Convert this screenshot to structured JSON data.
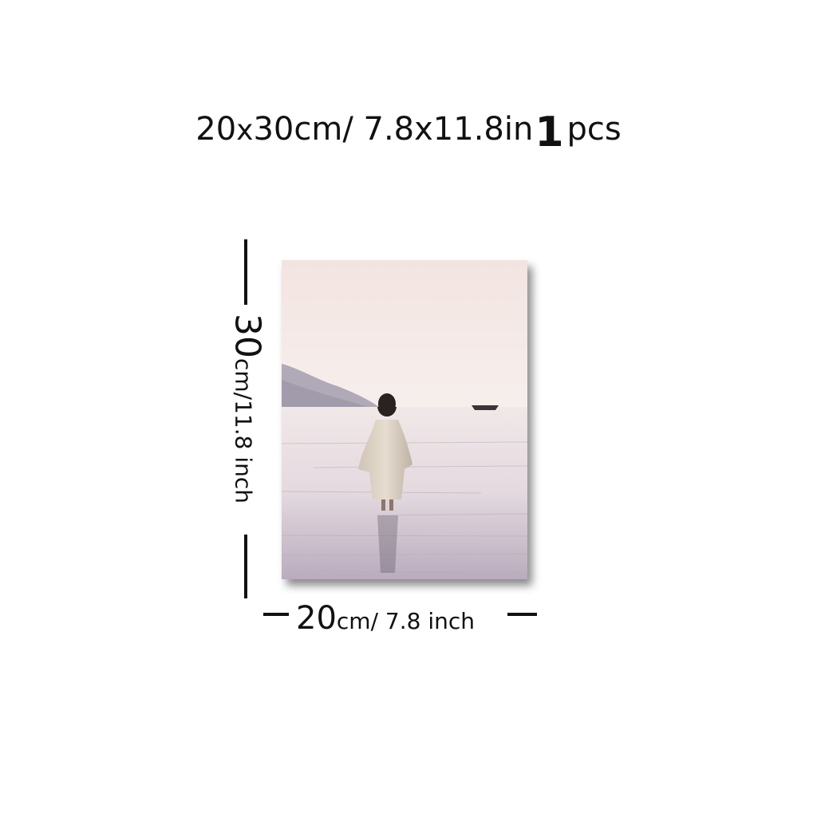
{
  "header": {
    "size_cm": "20",
    "size_x": "x",
    "size_cm_rest": "30cm/ 7.8x11.8in",
    "qty_number": "1",
    "qty_unit": "pcs"
  },
  "dimensions": {
    "height_value": "30",
    "height_unit_text": "cm/11.8 inch",
    "width_value": "20",
    "width_unit_text": "cm/ 7.8 inch"
  },
  "artwork": {
    "subject": "robed figure walking on calm water toward a small boat, misty mountains in background",
    "colors": {
      "sky": "#f4e9e6",
      "water": "#d9cfd6",
      "mountain": "#a9a2b0",
      "robe": "#ddd2c4",
      "hair": "#2a2220"
    }
  }
}
